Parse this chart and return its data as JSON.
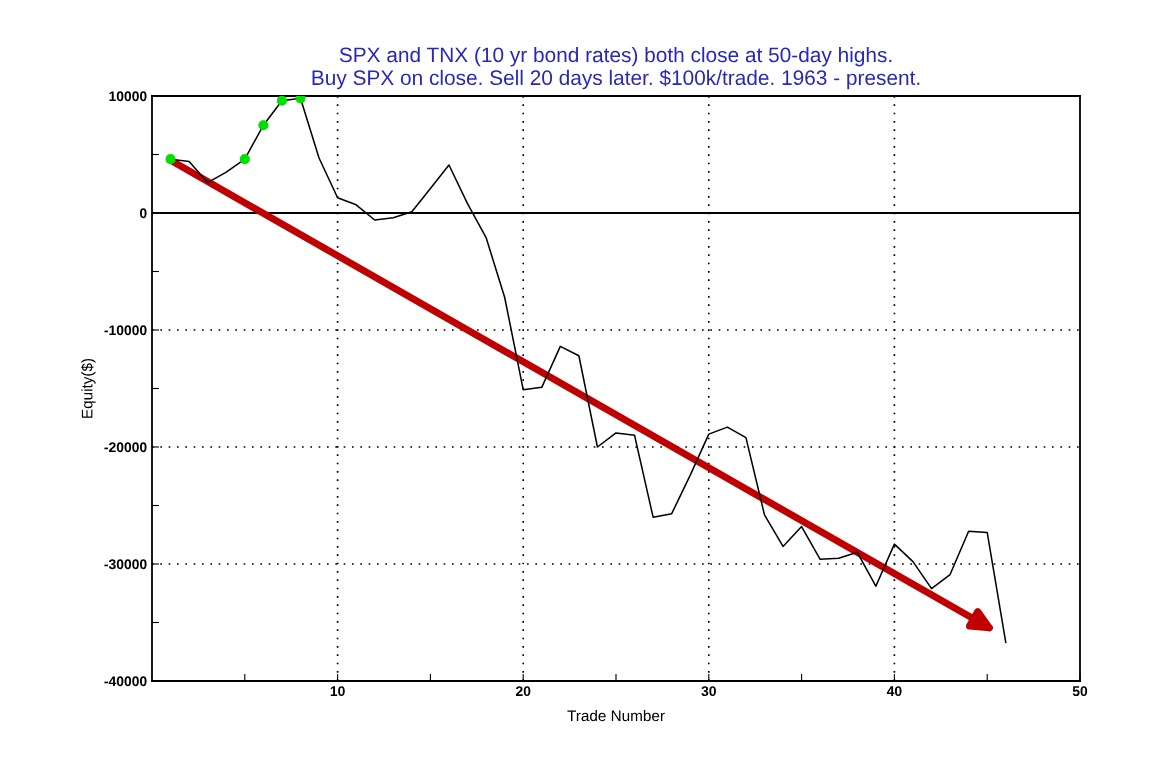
{
  "chart_data": {
    "type": "line",
    "title": "SPX and TNX (10 yr bond rates) both close at 50-day highs.\nBuy SPX on close. Sell 20 days later. $100k/trade. 1963 - present.",
    "xlabel": "Trade Number",
    "ylabel": "Equity($)",
    "x": [
      1,
      2,
      3,
      4,
      5,
      6,
      7,
      8,
      9,
      10,
      11,
      12,
      13,
      14,
      15,
      16,
      17,
      18,
      19,
      20,
      21,
      22,
      23,
      24,
      25,
      26,
      27,
      28,
      29,
      30,
      31,
      32,
      33,
      34,
      35,
      36,
      37,
      38,
      39,
      40,
      41,
      42,
      43,
      44,
      45,
      46
    ],
    "series": [
      {
        "color": "#000000",
        "marker": "none",
        "values": [
          4600,
          4400,
          2600,
          3500,
          4600,
          7500,
          9600,
          9800,
          4700,
          1300,
          700,
          -600,
          -400,
          100,
          2100,
          4100,
          800,
          -2100,
          -7200,
          -15100,
          -14900,
          -11400,
          -12200,
          -20000,
          -18800,
          -19000,
          -26000,
          -25700,
          -22400,
          -18900,
          -18300,
          -19200,
          -25800,
          -28500,
          -26800,
          -29600,
          -29500,
          -29000,
          -31900,
          -28300,
          -29800,
          -32100,
          -30900,
          -27200,
          -27300,
          -36700
        ]
      },
      {
        "type": "scatter",
        "color": "#00e000",
        "marker": "circle",
        "x": [
          1,
          5,
          6,
          7,
          8
        ],
        "values": [
          4600,
          4600,
          7500,
          9600,
          9800
        ]
      }
    ],
    "xlim": [
      0,
      50
    ],
    "xticks": [
      {
        "value": 5,
        "label": null
      },
      10,
      {
        "value": 15,
        "label": null
      },
      20,
      {
        "value": 25,
        "label": null
      },
      30,
      {
        "value": 35,
        "label": null
      },
      40,
      {
        "value": 45,
        "label": null
      },
      50
    ],
    "ylim": [
      -40000,
      10000
    ],
    "yticks": [
      -40000,
      {
        "value": -35000,
        "label": null
      },
      -30000,
      {
        "value": -25000,
        "label": null
      },
      -20000,
      {
        "value": -15000,
        "label": null
      },
      -10000,
      {
        "value": -5000,
        "label": null
      },
      0,
      {
        "value": 5000,
        "label": null
      },
      10000
    ],
    "ref_lines": [
      {
        "axis": "y",
        "value": 0,
        "color": "#000000",
        "line_style": "solid"
      }
    ],
    "grid": true
  }
}
